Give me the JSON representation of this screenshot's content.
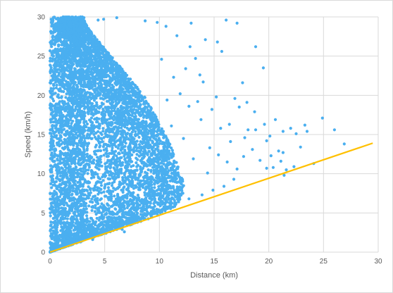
{
  "chart_data": {
    "type": "scatter",
    "title": "",
    "xlabel": "Distance (km)",
    "ylabel": "Speed (km/h)",
    "xlim": [
      0,
      30
    ],
    "ylim": [
      0,
      30
    ],
    "x_ticks": [
      "0",
      "5",
      "10",
      "15",
      "20",
      "25",
      "30"
    ],
    "y_ticks": [
      "0",
      "5",
      "10",
      "15",
      "20",
      "25",
      "30"
    ],
    "grid": true,
    "legend": "none",
    "point_color": "#4aaff0",
    "line_color": "#ffc000",
    "series": [
      {
        "kind": "scatter",
        "points": [
          [
            16.1,
            29.6
          ],
          [
            17.1,
            29.2
          ],
          [
            15.3,
            26.8
          ],
          [
            15.7,
            25.6
          ],
          [
            18.8,
            26.2
          ],
          [
            19.5,
            23.5
          ],
          [
            17.6,
            21.6
          ],
          [
            16.9,
            19.6
          ],
          [
            17.3,
            18.5
          ],
          [
            18.0,
            19.1
          ],
          [
            18.7,
            17.9
          ],
          [
            19.6,
            16.3
          ],
          [
            20.1,
            14.8
          ],
          [
            20.6,
            16.9
          ],
          [
            21.3,
            15.4
          ],
          [
            22.0,
            15.8
          ],
          [
            22.5,
            15.1
          ],
          [
            23.3,
            16.2
          ],
          [
            23.5,
            15.4
          ],
          [
            24.9,
            17.1
          ],
          [
            26.0,
            15.6
          ],
          [
            26.9,
            13.8
          ],
          [
            18.1,
            15.6
          ],
          [
            18.8,
            15.6
          ],
          [
            19.8,
            14.2
          ],
          [
            20.2,
            12.3
          ],
          [
            20.9,
            12.9
          ],
          [
            21.3,
            12.7
          ],
          [
            20.4,
            10.8
          ],
          [
            21.1,
            11.6
          ],
          [
            21.6,
            10.5
          ],
          [
            22.3,
            10.9
          ],
          [
            21.4,
            9.8
          ],
          [
            19.8,
            10.7
          ],
          [
            18.5,
            13.1
          ],
          [
            17.7,
            12.2
          ],
          [
            16.5,
            14.1
          ],
          [
            15.6,
            15.8
          ],
          [
            14.8,
            18.2
          ],
          [
            14.0,
            21.7
          ],
          [
            13.3,
            24.7
          ],
          [
            12.8,
            26.2
          ],
          [
            11.6,
            27.6
          ],
          [
            10.6,
            28.8
          ],
          [
            9.8,
            29.3
          ],
          [
            8.7,
            29.5
          ],
          [
            6.1,
            29.9
          ],
          [
            4.9,
            29.7
          ],
          [
            12.9,
            29.2
          ],
          [
            14.2,
            27.1
          ],
          [
            13.7,
            22.6
          ],
          [
            12.4,
            23.4
          ],
          [
            11.9,
            20.2
          ],
          [
            12.7,
            18.6
          ],
          [
            13.8,
            16.9
          ],
          [
            14.6,
            13.3
          ],
          [
            15.4,
            12.4
          ],
          [
            16.2,
            11.5
          ],
          [
            17.1,
            10.6
          ],
          [
            16.8,
            9.3
          ],
          [
            15.9,
            8.4
          ],
          [
            14.9,
            7.9
          ],
          [
            13.9,
            7.3
          ],
          [
            12.7,
            6.8
          ],
          [
            11.5,
            6.1
          ],
          [
            10.3,
            5.5
          ],
          [
            9.2,
            5.0
          ],
          [
            8.1,
            4.5
          ],
          [
            7.1,
            3.9
          ],
          [
            6.6,
            2.9
          ],
          [
            6.8,
            2.6
          ],
          [
            3.9,
            1.6
          ],
          [
            2.8,
            1.3
          ],
          [
            1.6,
            0.9
          ],
          [
            0.6,
            0.4
          ],
          [
            0.1,
            29.7
          ],
          [
            0.3,
            29.9
          ],
          [
            1.2,
            30.0
          ],
          [
            2.3,
            29.8
          ],
          [
            3.1,
            29.9
          ],
          [
            4.4,
            29.6
          ],
          [
            0.2,
            25.1
          ],
          [
            0.1,
            18.4
          ],
          [
            0.2,
            12.3
          ],
          [
            0.1,
            6.2
          ],
          [
            0.2,
            2.1
          ],
          [
            24.1,
            11.3
          ],
          [
            22.9,
            13.4
          ],
          [
            19.2,
            11.7
          ],
          [
            17.8,
            14.6
          ],
          [
            16.4,
            16.3
          ],
          [
            15.2,
            19.8
          ],
          [
            13.5,
            19.2
          ],
          [
            14.4,
            10.1
          ],
          [
            13.1,
            11.9
          ],
          [
            12.2,
            14.5
          ],
          [
            11.1,
            16.1
          ],
          [
            10.7,
            19.4
          ],
          [
            11.3,
            22.3
          ],
          [
            10.2,
            24.6
          ]
        ]
      },
      {
        "kind": "line",
        "points": [
          [
            0,
            0
          ],
          [
            29.5,
            13.9
          ]
        ]
      }
    ],
    "dense_region": {
      "distance_max_by_speed": [
        [
          0,
          0
        ],
        [
          1,
          2.1
        ],
        [
          2,
          4.3
        ],
        [
          3,
          6.4
        ],
        [
          4,
          8.5
        ],
        [
          5,
          10.4
        ],
        [
          6,
          11.6
        ],
        [
          7,
          12.1
        ],
        [
          8,
          12.3
        ],
        [
          9,
          12.2
        ],
        [
          10,
          11.9
        ],
        [
          11,
          11.7
        ],
        [
          12,
          11.5
        ],
        [
          13,
          11.2
        ],
        [
          14,
          10.9
        ],
        [
          15,
          10.6
        ],
        [
          16,
          10.2
        ],
        [
          17,
          9.8
        ],
        [
          18,
          9.4
        ],
        [
          19,
          9.0
        ],
        [
          20,
          8.6
        ],
        [
          21,
          8.0
        ],
        [
          22,
          7.4
        ],
        [
          23,
          6.8
        ],
        [
          24,
          6.2
        ],
        [
          25,
          5.6
        ],
        [
          26,
          5.0
        ],
        [
          27,
          4.4
        ],
        [
          28,
          3.8
        ],
        [
          29,
          3.3
        ],
        [
          30,
          3.0
        ]
      ]
    }
  }
}
